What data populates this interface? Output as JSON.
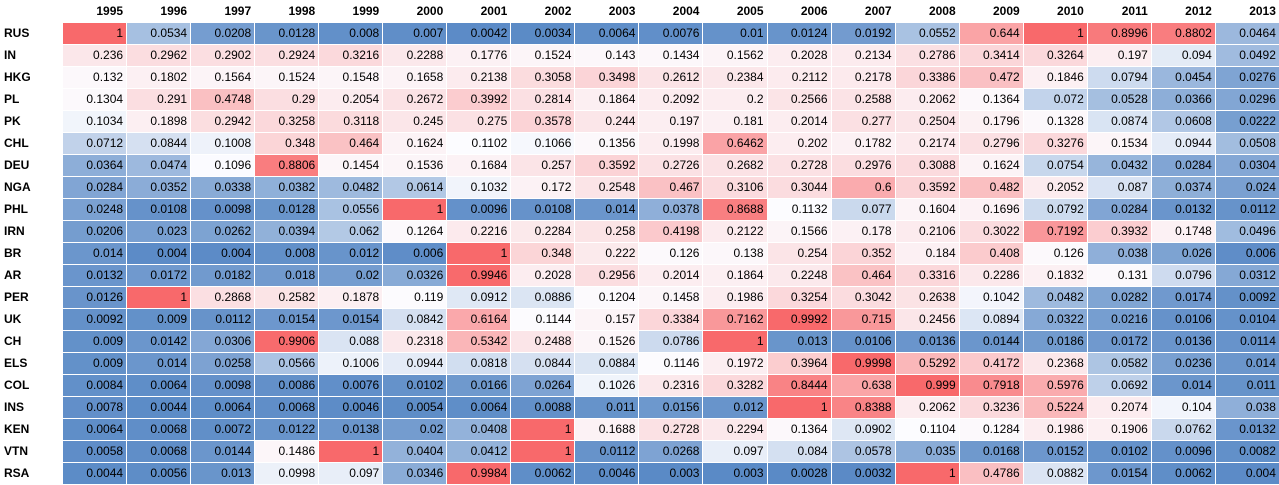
{
  "chart_data": {
    "type": "heatmap",
    "columns": [
      "1995",
      "1996",
      "1997",
      "1998",
      "1999",
      "2000",
      "2001",
      "2002",
      "2003",
      "2004",
      "2005",
      "2006",
      "2007",
      "2008",
      "2009",
      "2010",
      "2011",
      "2012",
      "2013"
    ],
    "rows": [
      {
        "label": "RUS",
        "values": [
          1,
          0.0534,
          0.0208,
          0.0128,
          0.008,
          0.007,
          0.0042,
          0.0034,
          0.0064,
          0.0076,
          0.01,
          0.0124,
          0.0192,
          0.0552,
          0.644,
          1,
          0.8996,
          0.8802,
          0.0464
        ]
      },
      {
        "label": "IN",
        "values": [
          0.236,
          0.2962,
          0.2902,
          0.2924,
          0.3216,
          0.2288,
          0.1776,
          0.1524,
          0.143,
          0.1434,
          0.1562,
          0.2028,
          0.2134,
          0.2786,
          0.3414,
          0.3264,
          0.197,
          0.094,
          0.0492
        ]
      },
      {
        "label": "HKG",
        "values": [
          0.132,
          0.1802,
          0.1564,
          0.1524,
          0.1548,
          0.1658,
          0.2138,
          0.3058,
          0.3498,
          0.2612,
          0.2384,
          0.2112,
          0.2178,
          0.3386,
          0.472,
          0.1846,
          0.0794,
          0.0454,
          0.0276
        ]
      },
      {
        "label": "PL",
        "values": [
          0.1304,
          0.291,
          0.4748,
          0.29,
          0.2054,
          0.2672,
          0.3992,
          0.2814,
          0.1864,
          0.2092,
          0.2,
          0.2566,
          0.2588,
          0.2062,
          0.1364,
          0.072,
          0.0528,
          0.0366,
          0.0296
        ]
      },
      {
        "label": "PK",
        "values": [
          0.1034,
          0.1898,
          0.2942,
          0.3258,
          0.3118,
          0.245,
          0.275,
          0.3578,
          0.244,
          0.197,
          0.181,
          0.2014,
          0.277,
          0.2504,
          0.1796,
          0.1328,
          0.0874,
          0.0608,
          0.0222
        ]
      },
      {
        "label": "CHL",
        "values": [
          0.0712,
          0.0844,
          0.1008,
          0.348,
          0.464,
          0.1624,
          0.1102,
          0.1066,
          0.1356,
          0.1998,
          0.6462,
          0.202,
          0.1782,
          0.2174,
          0.2796,
          0.3276,
          0.1534,
          0.0944,
          0.0508
        ]
      },
      {
        "label": "DEU",
        "values": [
          0.0364,
          0.0474,
          0.1096,
          0.8806,
          0.1454,
          0.1536,
          0.1684,
          0.257,
          0.3592,
          0.2726,
          0.2682,
          0.2728,
          0.2976,
          0.3088,
          0.1624,
          0.0754,
          0.0432,
          0.0284,
          0.0304
        ]
      },
      {
        "label": "NGA",
        "values": [
          0.0284,
          0.0352,
          0.0338,
          0.0382,
          0.0482,
          0.0614,
          0.1032,
          0.172,
          0.2548,
          0.467,
          0.3106,
          0.3044,
          0.6,
          0.3592,
          0.482,
          0.2052,
          0.087,
          0.0374,
          0.024
        ]
      },
      {
        "label": "PHL",
        "values": [
          0.0248,
          0.0108,
          0.0098,
          0.0128,
          0.0556,
          1,
          0.0096,
          0.0108,
          0.014,
          0.0378,
          0.8688,
          0.1132,
          0.077,
          0.1604,
          0.1696,
          0.0792,
          0.0284,
          0.0132,
          0.0112
        ]
      },
      {
        "label": "IRN",
        "values": [
          0.0206,
          0.023,
          0.0262,
          0.0394,
          0.062,
          0.1264,
          0.2216,
          0.2284,
          0.258,
          0.4198,
          0.2122,
          0.1566,
          0.178,
          0.2106,
          0.3022,
          0.7192,
          0.3932,
          0.1748,
          0.0496
        ]
      },
      {
        "label": "BR",
        "values": [
          0.014,
          0.004,
          0.004,
          0.008,
          0.012,
          0.006,
          1,
          0.348,
          0.222,
          0.126,
          0.138,
          0.254,
          0.352,
          0.184,
          0.408,
          0.126,
          0.038,
          0.026,
          0.006
        ]
      },
      {
        "label": "AR",
        "values": [
          0.0132,
          0.0172,
          0.0182,
          0.018,
          0.02,
          0.0326,
          0.9946,
          0.2028,
          0.2956,
          0.2014,
          0.1864,
          0.2248,
          0.464,
          0.3316,
          0.2286,
          0.1832,
          0.131,
          0.0796,
          0.0312
        ]
      },
      {
        "label": "PER",
        "values": [
          0.0126,
          1,
          0.2868,
          0.2582,
          0.1878,
          0.119,
          0.0912,
          0.0886,
          0.1204,
          0.1458,
          0.1986,
          0.3254,
          0.3042,
          0.2638,
          0.1042,
          0.0482,
          0.0282,
          0.0174,
          0.0092
        ]
      },
      {
        "label": "UK",
        "values": [
          0.0092,
          0.009,
          0.0112,
          0.0154,
          0.0154,
          0.0842,
          0.6164,
          0.1144,
          0.157,
          0.3384,
          0.7162,
          0.9992,
          0.715,
          0.2456,
          0.0894,
          0.0322,
          0.0216,
          0.0106,
          0.0104
        ]
      },
      {
        "label": "CH",
        "values": [
          0.009,
          0.0142,
          0.0306,
          0.9906,
          0.088,
          0.2318,
          0.5342,
          0.2488,
          0.1526,
          0.0786,
          1,
          0.013,
          0.0106,
          0.0136,
          0.0144,
          0.0186,
          0.0172,
          0.0136,
          0.0114
        ]
      },
      {
        "label": "ELS",
        "values": [
          0.009,
          0.014,
          0.0258,
          0.0566,
          0.1006,
          0.0944,
          0.0818,
          0.0844,
          0.0884,
          0.1146,
          0.1972,
          0.3964,
          0.9998,
          0.5292,
          0.4172,
          0.2368,
          0.0582,
          0.0236,
          0.014
        ]
      },
      {
        "label": "COL",
        "values": [
          0.0084,
          0.0064,
          0.0098,
          0.0086,
          0.0076,
          0.0102,
          0.0166,
          0.0264,
          0.1026,
          0.2316,
          0.3282,
          0.8444,
          0.638,
          0.999,
          0.7918,
          0.5976,
          0.0692,
          0.014,
          0.011
        ]
      },
      {
        "label": "INS",
        "values": [
          0.0078,
          0.0044,
          0.0064,
          0.0068,
          0.0046,
          0.0054,
          0.0064,
          0.0088,
          0.011,
          0.0156,
          0.012,
          1,
          0.8388,
          0.2062,
          0.3236,
          0.5224,
          0.2074,
          0.104,
          0.038
        ]
      },
      {
        "label": "KEN",
        "values": [
          0.0064,
          0.0068,
          0.0072,
          0.0122,
          0.0138,
          0.02,
          0.0408,
          1,
          0.1688,
          0.2728,
          0.2294,
          0.1364,
          0.0902,
          0.1104,
          0.1284,
          0.1986,
          0.1906,
          0.0762,
          0.0132
        ]
      },
      {
        "label": "VTN",
        "values": [
          0.0058,
          0.0068,
          0.0144,
          0.1486,
          1,
          0.0404,
          0.0412,
          1,
          0.0112,
          0.0268,
          0.097,
          0.084,
          0.0578,
          0.035,
          0.0168,
          0.0152,
          0.0102,
          0.0096,
          0.0082
        ]
      },
      {
        "label": "RSA",
        "values": [
          0.0044,
          0.0056,
          0.013,
          0.0998,
          0.097,
          0.0346,
          0.9984,
          0.0062,
          0.0046,
          0.003,
          0.003,
          0.0028,
          0.0032,
          1,
          0.4786,
          0.0882,
          0.0154,
          0.0062,
          0.004
        ]
      }
    ],
    "color_scale": {
      "low": "#5a8ac6",
      "mid": "#fcfcff",
      "high": "#f8696b"
    }
  }
}
